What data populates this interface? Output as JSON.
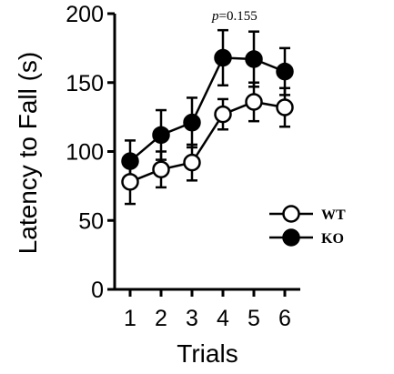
{
  "chart_data": {
    "type": "line",
    "xlabel": "Trials",
    "ylabel": "Latency to Fall (s)",
    "x": [
      1,
      2,
      3,
      4,
      5,
      6
    ],
    "xlim": [
      0.5,
      6.5
    ],
    "ylim": [
      0,
      200
    ],
    "yticks": [
      0,
      50,
      100,
      150,
      200
    ],
    "grid": false,
    "legend_position": "lower-right",
    "annotation": {
      "prefix": "p",
      "text": "=0.155"
    },
    "series": [
      {
        "name": "WT",
        "marker": "open-circle",
        "color": "#000000",
        "values": [
          78,
          87,
          92,
          127,
          136,
          132
        ],
        "error": [
          16,
          13,
          13,
          11,
          14,
          14
        ]
      },
      {
        "name": "KO",
        "marker": "filled-circle",
        "color": "#000000",
        "values": [
          93,
          112,
          121,
          168,
          167,
          158
        ],
        "error": [
          15,
          18,
          18,
          20,
          20,
          17
        ]
      }
    ]
  }
}
